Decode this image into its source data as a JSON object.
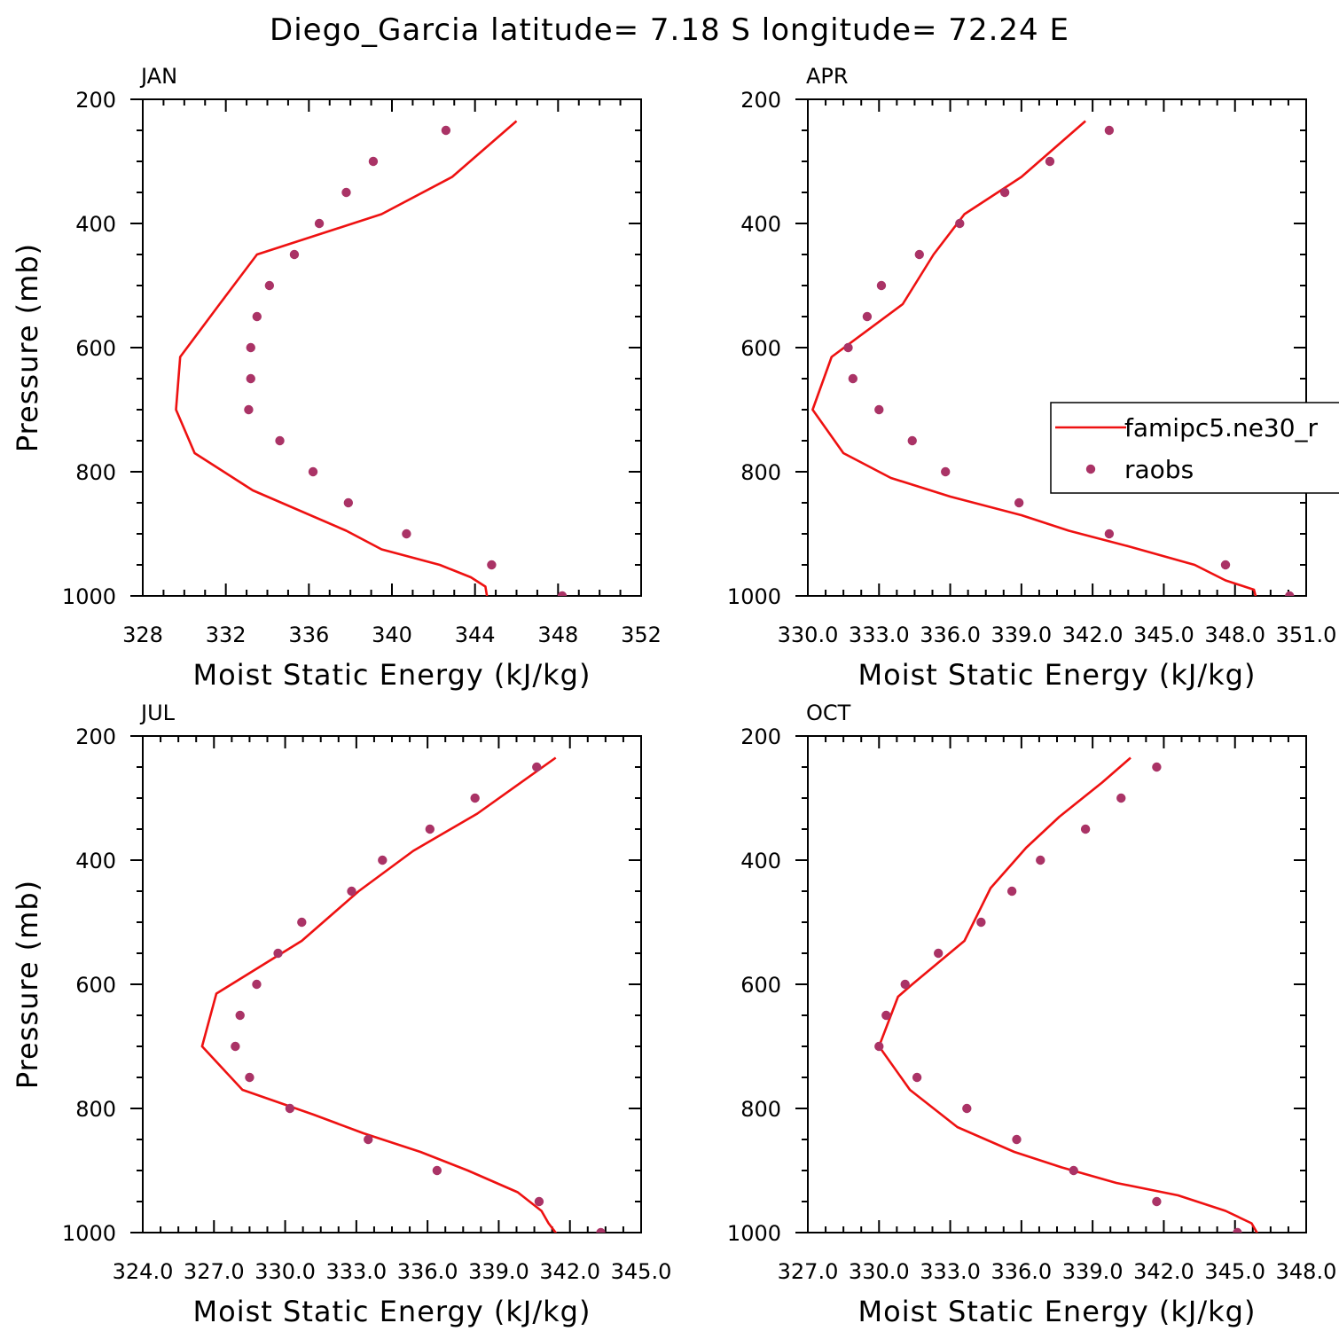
{
  "title": "Diego_Garcia  latitude= 7.18 S longitude= 72.24 E",
  "colors": {
    "model": "#ee1111",
    "obs": "#aa3366",
    "axes": "#000000"
  },
  "legend": {
    "panel": "APR",
    "entries": [
      {
        "label": "famipc5.ne30_r",
        "style": "line"
      },
      {
        "label": "raobs",
        "style": "marker"
      }
    ]
  },
  "chart_data": [
    {
      "type": "line",
      "panel_label": "JAN",
      "xlabel": "Moist Static Energy (kJ/kg)",
      "ylabel": "Pressure (mb)",
      "xlim": [
        328,
        352
      ],
      "ylim": [
        1000,
        200
      ],
      "xticks": [
        328,
        332,
        336,
        340,
        344,
        348,
        352
      ],
      "xtick_labels": [
        "328",
        "332",
        "336",
        "340",
        "344",
        "348",
        "352"
      ],
      "yticks": [
        200,
        400,
        600,
        800,
        1000
      ],
      "ytick_labels": [
        "200",
        "400",
        "600",
        "800",
        "1000"
      ],
      "series": [
        {
          "style": "line",
          "values": [
            [
              346.0,
              235
            ],
            [
              342.9,
              325
            ],
            [
              339.5,
              385
            ],
            [
              333.5,
              450
            ],
            [
              331.7,
              530
            ],
            [
              329.8,
              615
            ],
            [
              329.6,
              700
            ],
            [
              330.5,
              770
            ],
            [
              333.3,
              830
            ],
            [
              337.8,
              895
            ],
            [
              339.5,
              925
            ],
            [
              342.3,
              950
            ],
            [
              343.8,
              970
            ],
            [
              344.5,
              985
            ],
            [
              344.6,
              1005
            ]
          ]
        },
        {
          "style": "marker",
          "values": [
            [
              342.6,
              250
            ],
            [
              339.1,
              300
            ],
            [
              337.8,
              350
            ],
            [
              336.5,
              400
            ],
            [
              335.3,
              450
            ],
            [
              334.1,
              500
            ],
            [
              333.5,
              550
            ],
            [
              333.2,
              600
            ],
            [
              333.2,
              650
            ],
            [
              333.1,
              700
            ],
            [
              334.6,
              750
            ],
            [
              336.2,
              800
            ],
            [
              337.9,
              850
            ],
            [
              340.7,
              900
            ],
            [
              344.8,
              950
            ],
            [
              348.2,
              1000
            ]
          ]
        }
      ]
    },
    {
      "type": "line",
      "panel_label": "APR",
      "xlabel": "Moist Static Energy (kJ/kg)",
      "ylabel": "",
      "xlim": [
        330,
        351
      ],
      "ylim": [
        1000,
        200
      ],
      "xticks": [
        330,
        333,
        336,
        339,
        342,
        345,
        348,
        351
      ],
      "xtick_labels": [
        "330.0",
        "333.0",
        "336.0",
        "339.0",
        "342.0",
        "345.0",
        "348.0",
        "351.0"
      ],
      "yticks": [
        200,
        400,
        600,
        800,
        1000
      ],
      "ytick_labels": [
        "200",
        "400",
        "600",
        "800",
        "1000"
      ],
      "series": [
        {
          "style": "line",
          "values": [
            [
              341.7,
              235
            ],
            [
              339.0,
              325
            ],
            [
              336.6,
              385
            ],
            [
              335.3,
              450
            ],
            [
              334.0,
              530
            ],
            [
              331.0,
              615
            ],
            [
              330.2,
              700
            ],
            [
              331.5,
              770
            ],
            [
              333.5,
              810
            ],
            [
              336.0,
              840
            ],
            [
              339.0,
              870
            ],
            [
              341.0,
              895
            ],
            [
              343.5,
              920
            ],
            [
              346.3,
              950
            ],
            [
              347.6,
              975
            ],
            [
              348.8,
              990
            ],
            [
              348.9,
              1005
            ]
          ]
        },
        {
          "style": "marker",
          "values": [
            [
              342.7,
              250
            ],
            [
              340.2,
              300
            ],
            [
              338.3,
              350
            ],
            [
              336.4,
              400
            ],
            [
              334.7,
              450
            ],
            [
              333.1,
              500
            ],
            [
              332.5,
              550
            ],
            [
              331.7,
              600
            ],
            [
              331.9,
              650
            ],
            [
              333.0,
              700
            ],
            [
              334.4,
              750
            ],
            [
              335.8,
              800
            ],
            [
              338.9,
              850
            ],
            [
              342.7,
              900
            ],
            [
              347.6,
              950
            ],
            [
              350.3,
              1000
            ]
          ]
        }
      ]
    },
    {
      "type": "line",
      "panel_label": "JUL",
      "xlabel": "Moist Static Energy (kJ/kg)",
      "ylabel": "Pressure (mb)",
      "xlim": [
        324,
        345
      ],
      "ylim": [
        1000,
        200
      ],
      "xticks": [
        324,
        327,
        330,
        333,
        336,
        339,
        342,
        345
      ],
      "xtick_labels": [
        "324.0",
        "327.0",
        "330.0",
        "333.0",
        "336.0",
        "339.0",
        "342.0",
        "345.0"
      ],
      "yticks": [
        200,
        400,
        600,
        800,
        1000
      ],
      "ytick_labels": [
        "200",
        "400",
        "600",
        "800",
        "1000"
      ],
      "series": [
        {
          "style": "line",
          "values": [
            [
              341.4,
              235
            ],
            [
              338.1,
              325
            ],
            [
              335.4,
              385
            ],
            [
              333.1,
              450
            ],
            [
              330.7,
              530
            ],
            [
              327.1,
              615
            ],
            [
              326.5,
              700
            ],
            [
              328.2,
              770
            ],
            [
              331.2,
              810
            ],
            [
              333.3,
              840
            ],
            [
              335.7,
              870
            ],
            [
              337.7,
              900
            ],
            [
              339.8,
              935
            ],
            [
              340.8,
              965
            ],
            [
              341.1,
              985
            ],
            [
              341.5,
              1005
            ]
          ]
        },
        {
          "style": "marker",
          "values": [
            [
              340.6,
              250
            ],
            [
              338.0,
              300
            ],
            [
              336.1,
              350
            ],
            [
              334.1,
              400
            ],
            [
              332.8,
              450
            ],
            [
              330.7,
              500
            ],
            [
              329.7,
              550
            ],
            [
              328.8,
              600
            ],
            [
              328.1,
              650
            ],
            [
              327.9,
              700
            ],
            [
              328.5,
              750
            ],
            [
              330.2,
              800
            ],
            [
              333.5,
              850
            ],
            [
              336.4,
              900
            ],
            [
              340.7,
              950
            ],
            [
              343.3,
              1000
            ]
          ]
        }
      ]
    },
    {
      "type": "line",
      "panel_label": "OCT",
      "xlabel": "Moist Static Energy (kJ/kg)",
      "ylabel": "",
      "xlim": [
        327,
        348
      ],
      "ylim": [
        1000,
        200
      ],
      "xticks": [
        327,
        330,
        333,
        336,
        339,
        342,
        345,
        348
      ],
      "xtick_labels": [
        "327.0",
        "330.0",
        "333.0",
        "336.0",
        "339.0",
        "342.0",
        "345.0",
        "348.0"
      ],
      "yticks": [
        200,
        400,
        600,
        800,
        1000
      ],
      "ytick_labels": [
        "200",
        "400",
        "600",
        "800",
        "1000"
      ],
      "series": [
        {
          "style": "line",
          "values": [
            [
              340.6,
              235
            ],
            [
              339.4,
              275
            ],
            [
              337.6,
              330
            ],
            [
              336.2,
              380
            ],
            [
              334.7,
              445
            ],
            [
              333.6,
              530
            ],
            [
              331.4,
              600
            ],
            [
              330.8,
              620
            ],
            [
              330.0,
              700
            ],
            [
              331.3,
              770
            ],
            [
              333.3,
              830
            ],
            [
              335.7,
              870
            ],
            [
              337.7,
              895
            ],
            [
              340.0,
              920
            ],
            [
              342.6,
              940
            ],
            [
              344.6,
              965
            ],
            [
              345.7,
              985
            ],
            [
              346.0,
              1005
            ]
          ]
        },
        {
          "style": "marker",
          "values": [
            [
              341.7,
              250
            ],
            [
              340.2,
              300
            ],
            [
              338.7,
              350
            ],
            [
              336.8,
              400
            ],
            [
              335.6,
              450
            ],
            [
              334.3,
              500
            ],
            [
              332.5,
              550
            ],
            [
              331.1,
              600
            ],
            [
              330.3,
              650
            ],
            [
              330.0,
              700
            ],
            [
              331.6,
              750
            ],
            [
              333.7,
              800
            ],
            [
              335.8,
              850
            ],
            [
              338.2,
              900
            ],
            [
              341.7,
              950
            ],
            [
              345.1,
              1000
            ]
          ]
        }
      ]
    }
  ]
}
